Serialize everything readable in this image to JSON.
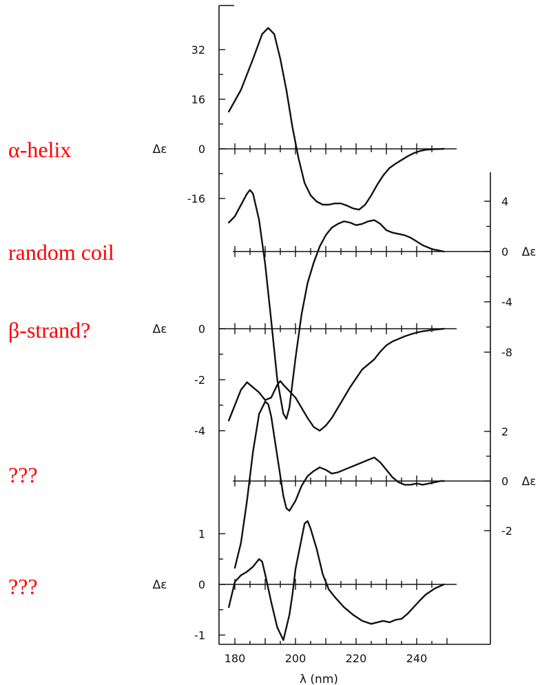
{
  "chart_data": {
    "type": "line",
    "xlabel": "λ (nm)",
    "x_ticks": [
      180,
      200,
      220,
      240
    ],
    "xlim": [
      177,
      252
    ],
    "annotations": [
      "α-helix",
      "random coil",
      "β-strand?",
      "???",
      "???"
    ],
    "panels": [
      {
        "id": "alpha-helix",
        "annotation": "α-helix",
        "ylabel": "Δε",
        "axis_side": "left",
        "y_ticks": [
          32,
          16,
          0,
          -16
        ],
        "baseline": 0,
        "x": [
          178,
          182,
          186,
          189,
          191,
          193,
          195,
          197,
          199,
          201,
          203,
          205,
          207,
          209,
          211,
          213,
          215,
          217,
          219,
          221,
          223,
          225,
          227,
          229,
          231,
          233,
          235,
          237,
          239,
          241,
          243,
          246,
          249
        ],
        "values": [
          12,
          19,
          29,
          37,
          39,
          37,
          29,
          19,
          7,
          -3,
          -11,
          -15,
          -17,
          -18,
          -18,
          -17.6,
          -17.6,
          -18.3,
          -19.2,
          -19.6,
          -18,
          -15,
          -11.5,
          -8.5,
          -6.2,
          -4.8,
          -3.6,
          -2.4,
          -1.4,
          -0.7,
          -0.3,
          -0.1,
          0
        ]
      },
      {
        "id": "random-coil",
        "annotation": "random coil",
        "ylabel": "Δε",
        "axis_side": "right",
        "y_ticks": [
          4,
          0,
          -4,
          -8
        ],
        "baseline": 0,
        "x": [
          178,
          180,
          182,
          184,
          185,
          186,
          188,
          190,
          192,
          194,
          196,
          197,
          198,
          200,
          202,
          204,
          206,
          208,
          210,
          212,
          214,
          216,
          218,
          220,
          222,
          224,
          226,
          228,
          230,
          232,
          234,
          236,
          238,
          240,
          242,
          245,
          249
        ],
        "values": [
          2.3,
          2.8,
          3.7,
          4.6,
          4.9,
          4.6,
          2.5,
          -1,
          -5.5,
          -10.2,
          -12.9,
          -13.3,
          -12.4,
          -8.5,
          -5,
          -2.5,
          -0.9,
          0.4,
          1.3,
          1.9,
          2.2,
          2.4,
          2.3,
          2.1,
          2.2,
          2.4,
          2.5,
          2.2,
          1.7,
          1.5,
          1.4,
          1.3,
          1.1,
          0.8,
          0.5,
          0.2,
          0
        ]
      },
      {
        "id": "beta-strand",
        "annotation": "β-strand?",
        "ylabel": "Δε",
        "axis_side": "left",
        "y_ticks": [
          0,
          -2,
          -4
        ],
        "baseline": 0,
        "x": [
          178,
          180,
          182,
          184,
          186,
          188,
          190,
          192,
          194,
          195,
          196,
          198,
          200,
          202,
          204,
          206,
          208,
          210,
          212,
          214,
          216,
          218,
          220,
          222,
          224,
          226,
          228,
          230,
          232,
          234,
          236,
          238,
          240,
          242,
          245,
          249
        ],
        "values": [
          -3.6,
          -3.0,
          -2.4,
          -2.1,
          -2.3,
          -2.5,
          -2.8,
          -2.7,
          -2.2,
          -2.05,
          -2.2,
          -2.45,
          -2.7,
          -3.1,
          -3.5,
          -3.85,
          -4.0,
          -3.8,
          -3.5,
          -3.1,
          -2.7,
          -2.3,
          -1.95,
          -1.6,
          -1.4,
          -1.2,
          -0.9,
          -0.65,
          -0.5,
          -0.4,
          -0.3,
          -0.22,
          -0.15,
          -0.1,
          -0.05,
          0
        ]
      },
      {
        "id": "unknown-1",
        "annotation": "???",
        "ylabel": "Δε",
        "axis_side": "right",
        "y_ticks": [
          2,
          0,
          -2
        ],
        "baseline": 0,
        "x": [
          180,
          182,
          184,
          186,
          188,
          190,
          191,
          192,
          194,
          196,
          197,
          198,
          200,
          202,
          204,
          206,
          208,
          210,
          212,
          214,
          216,
          218,
          220,
          222,
          224,
          226,
          228,
          230,
          232,
          234,
          236,
          238,
          240,
          242,
          244,
          246,
          248,
          249
        ],
        "values": [
          -3.5,
          -2.5,
          -0.8,
          1.2,
          2.7,
          3.2,
          3.1,
          2.6,
          1.0,
          -0.6,
          -1.1,
          -1.2,
          -0.8,
          -0.2,
          0.2,
          0.4,
          0.55,
          0.45,
          0.3,
          0.35,
          0.45,
          0.55,
          0.65,
          0.75,
          0.85,
          0.95,
          0.75,
          0.45,
          0.15,
          -0.05,
          -0.15,
          -0.15,
          -0.1,
          -0.15,
          -0.1,
          -0.05,
          0,
          0
        ]
      },
      {
        "id": "unknown-2",
        "annotation": "???",
        "ylabel": "Δε",
        "axis_side": "left",
        "y_ticks": [
          1,
          0,
          -1
        ],
        "baseline": 0,
        "x": [
          178,
          180,
          182,
          184,
          186,
          188,
          189,
          190,
          192,
          194,
          196,
          198,
          199,
          200,
          202,
          203,
          204,
          205,
          207,
          209,
          211,
          213,
          216,
          219,
          222,
          225,
          227,
          229,
          231,
          233,
          235,
          237,
          239,
          241,
          243,
          246,
          249
        ],
        "values": [
          -0.45,
          0.05,
          0.18,
          0.25,
          0.35,
          0.5,
          0.45,
          0.2,
          -0.35,
          -0.85,
          -1.1,
          -0.6,
          -0.2,
          0.3,
          0.9,
          1.2,
          1.25,
          1.1,
          0.7,
          0.2,
          -0.1,
          -0.25,
          -0.45,
          -0.6,
          -0.72,
          -0.78,
          -0.75,
          -0.72,
          -0.75,
          -0.7,
          -0.68,
          -0.58,
          -0.45,
          -0.32,
          -0.2,
          -0.08,
          0
        ]
      }
    ]
  }
}
